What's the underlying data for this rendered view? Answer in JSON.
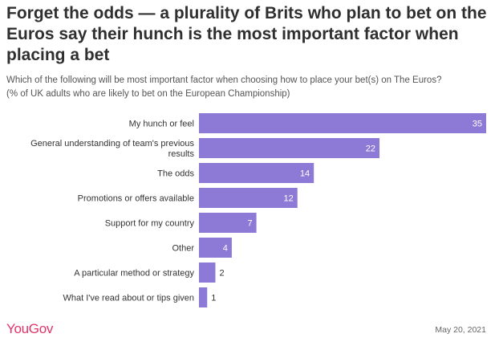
{
  "title": "Forget the odds — a plurality of Brits who plan to bet on the Euros say their hunch is the most important factor when placing a bet",
  "subtitle_line1": "Which of the following will be most important factor when choosing how to place your bet(s) on The Euros?",
  "subtitle_line2": "(% of UK adults who are likely to bet on the European Championship)",
  "brand": "YouGov",
  "date": "May 20, 2021",
  "colors": {
    "bar": "#8c7ad6",
    "brand": "#e0356b",
    "label_inside": "#ffffff",
    "label_outside": "#333333"
  },
  "chart_data": {
    "type": "bar",
    "orientation": "horizontal",
    "categories": [
      "My hunch or feel",
      "General understanding of team's previous results",
      "The odds",
      "Promotions or offers available",
      "Support for my country",
      "Other",
      "A particular method or strategy",
      "What I've read about or tips given"
    ],
    "category_lines": [
      [
        "My hunch or feel"
      ],
      [
        "General understanding of team's previous",
        "results"
      ],
      [
        "The odds"
      ],
      [
        "Promotions or offers available"
      ],
      [
        "Support for my country"
      ],
      [
        "Other"
      ],
      [
        "A particular method or strategy"
      ],
      [
        "What I've read about or tips given"
      ]
    ],
    "values": [
      35,
      22,
      14,
      12,
      7,
      4,
      2,
      1
    ],
    "xlim": [
      0,
      35
    ],
    "grid": false,
    "legend": "none"
  }
}
